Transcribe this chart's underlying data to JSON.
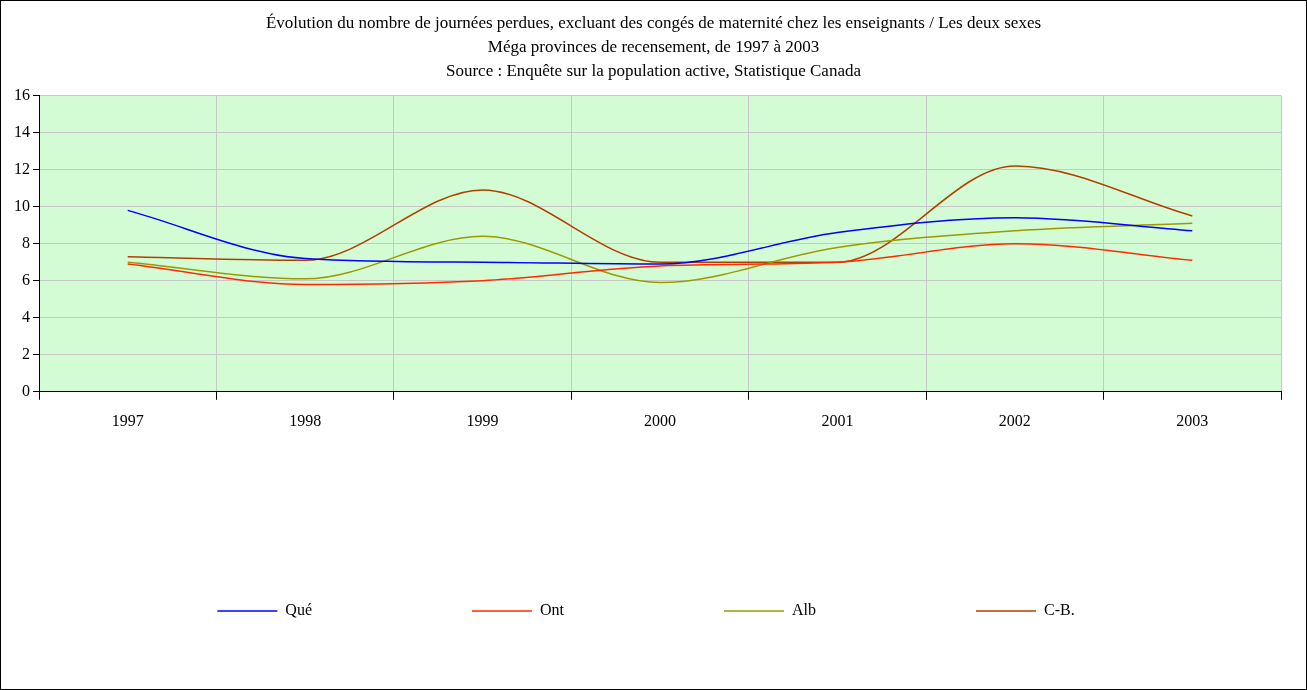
{
  "chart_data": {
    "type": "line",
    "title": "Évolution du nombre de journées perdues, excluant des congés de maternité chez les enseignants / Les deux sexes",
    "subtitle": "Méga provinces de recensement, de 1997 à 2003",
    "annotations": [
      "Source : Enquête sur la population active, Statistique Canada"
    ],
    "categories": [
      "1997",
      "1998",
      "1999",
      "2000",
      "2001",
      "2002",
      "2003"
    ],
    "series": [
      {
        "name": "Qué",
        "color": "#0000ff",
        "values": [
          9.8,
          7.2,
          7.0,
          6.9,
          8.6,
          9.4,
          8.7
        ]
      },
      {
        "name": "Ont",
        "color": "#ff2a00",
        "values": [
          6.9,
          5.8,
          6.0,
          6.8,
          7.0,
          8.0,
          7.1
        ]
      },
      {
        "name": "Alb",
        "color": "#9a9a00",
        "values": [
          7.0,
          6.1,
          8.4,
          5.9,
          7.8,
          8.7,
          9.1
        ]
      },
      {
        "name": "C-B.",
        "color": "#b04000",
        "values": [
          7.3,
          7.1,
          10.9,
          7.0,
          7.0,
          12.2,
          9.5
        ]
      }
    ],
    "ylim": [
      0,
      16
    ],
    "yticks": [
      0,
      2,
      4,
      6,
      8,
      10,
      12,
      14,
      16
    ],
    "grid": true,
    "legend": "bottom",
    "marker": "none",
    "line_style": "solid"
  }
}
